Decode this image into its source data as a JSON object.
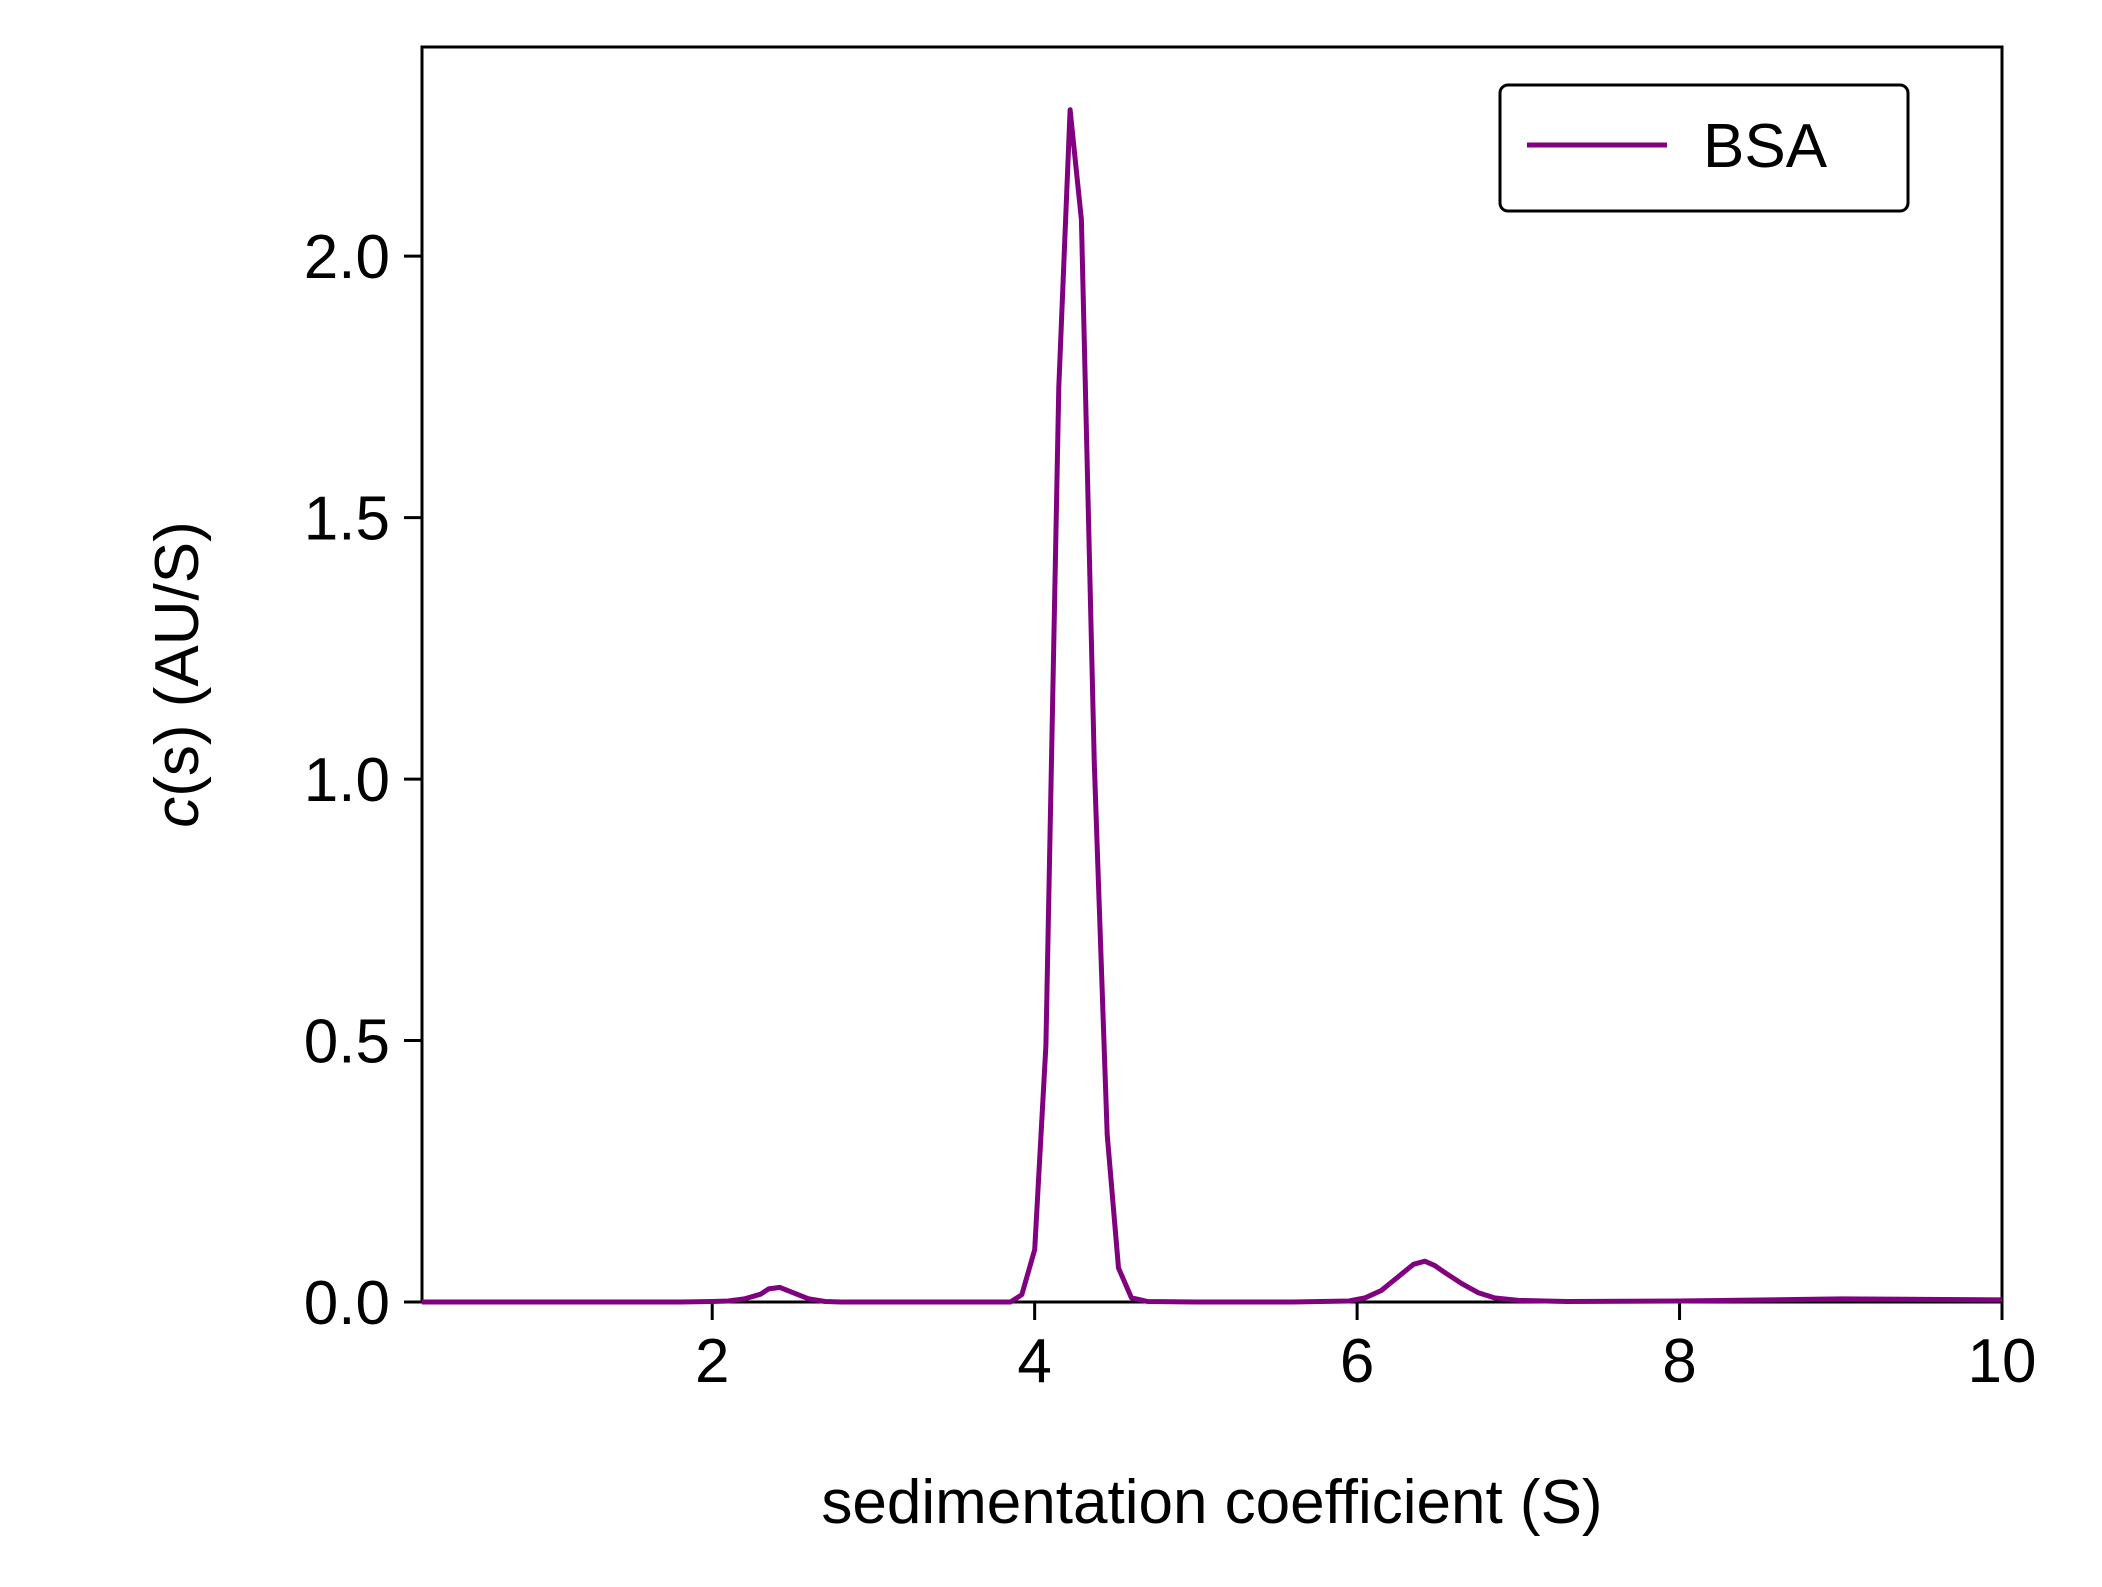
{
  "chart_data": {
    "type": "line",
    "title": "",
    "xlabel": "sedimentation coefficient (S)",
    "ylabel_italic": "c",
    "ylabel_rest": "(s) (AU/S)",
    "xlim": [
      0.2,
      10
    ],
    "ylim": [
      0,
      2.4
    ],
    "xticks": [
      2,
      4,
      6,
      8,
      10
    ],
    "xtick_labels": [
      "2",
      "4",
      "6",
      "8",
      "10"
    ],
    "yticks": [
      0.0,
      0.5,
      1.0,
      1.5,
      2.0
    ],
    "ytick_labels": [
      "0.0",
      "0.5",
      "1.0",
      "1.5",
      "2.0"
    ],
    "grid": false,
    "legend_position": "top-right",
    "series": [
      {
        "name": "BSA",
        "color": "#800080",
        "x": [
          0.2,
          1.0,
          1.8,
          2.0,
          2.1,
          2.2,
          2.3,
          2.35,
          2.42,
          2.5,
          2.6,
          2.7,
          2.8,
          3.0,
          3.5,
          3.85,
          3.92,
          4.0,
          4.07,
          4.15,
          4.22,
          4.29,
          4.37,
          4.45,
          4.52,
          4.6,
          4.7,
          5.0,
          5.6,
          5.95,
          6.05,
          6.15,
          6.25,
          6.35,
          6.42,
          6.48,
          6.55,
          6.65,
          6.75,
          6.85,
          7.0,
          7.3,
          8.0,
          9.0,
          10.0
        ],
        "y": [
          0.0,
          0.0,
          0.0,
          0.001,
          0.002,
          0.006,
          0.015,
          0.025,
          0.028,
          0.018,
          0.006,
          0.001,
          0.0,
          0.0,
          0.0,
          0.0,
          0.014,
          0.1,
          0.49,
          1.75,
          2.28,
          2.07,
          1.03,
          0.32,
          0.065,
          0.008,
          0.001,
          0.0,
          0.0,
          0.002,
          0.008,
          0.022,
          0.047,
          0.072,
          0.078,
          0.07,
          0.055,
          0.035,
          0.018,
          0.008,
          0.003,
          0.001,
          0.002,
          0.006,
          0.004
        ]
      }
    ]
  }
}
